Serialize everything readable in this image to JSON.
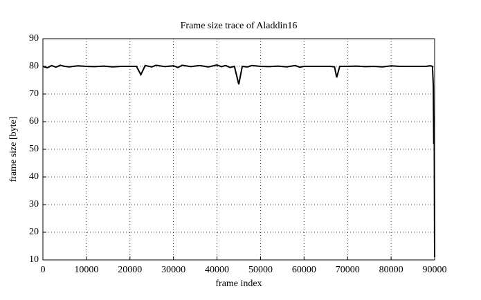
{
  "chart_data": {
    "type": "line",
    "title": "Frame size trace of Aladdin16",
    "x_label": "frame index",
    "y_label": "frame size [byte]",
    "x": [
      0,
      1000,
      2000,
      3000,
      4000,
      5000,
      6000,
      8000,
      10000,
      12000,
      14000,
      16000,
      18000,
      20000,
      21500,
      22500,
      23500,
      25000,
      26000,
      28000,
      30000,
      31000,
      32000,
      34000,
      36000,
      38000,
      40000,
      41000,
      42000,
      43000,
      44000,
      45000,
      45800,
      47000,
      48000,
      50000,
      52000,
      54000,
      56000,
      58000,
      59000,
      60000,
      62000,
      64000,
      66000,
      67000,
      67500,
      68200,
      70000,
      72000,
      74000,
      76000,
      78000,
      80000,
      82000,
      84000,
      86000,
      88000,
      89000,
      89500,
      89700,
      89800,
      89900,
      90000
    ],
    "series": [
      {
        "name": "Aladdin16",
        "color": "#000000",
        "values": [
          80,
          79.5,
          80.3,
          79.7,
          80.4,
          80,
          79.8,
          80.2,
          80,
          79.9,
          80.1,
          79.8,
          80,
          80,
          80,
          77,
          80.3,
          79.8,
          80.4,
          79.9,
          80.2,
          79.6,
          80.4,
          79.9,
          80.3,
          79.8,
          80.5,
          79.9,
          80.3,
          79.6,
          80,
          73.5,
          80,
          79.8,
          80.3,
          80,
          79.9,
          80.1,
          79.8,
          80.3,
          79.7,
          80,
          80,
          80,
          80,
          79.8,
          76,
          80,
          80,
          80.1,
          79.9,
          80,
          79.8,
          80.2,
          80,
          80,
          80,
          80,
          80.2,
          80,
          73,
          52,
          62,
          11
        ]
      }
    ],
    "xlim": [
      0,
      90000
    ],
    "xticks": [
      0,
      10000,
      20000,
      30000,
      40000,
      50000,
      60000,
      70000,
      80000,
      90000
    ],
    "ylim": [
      10,
      90
    ],
    "yticks": [
      10,
      20,
      30,
      40,
      50,
      60,
      70,
      80,
      90
    ],
    "grid": true
  }
}
